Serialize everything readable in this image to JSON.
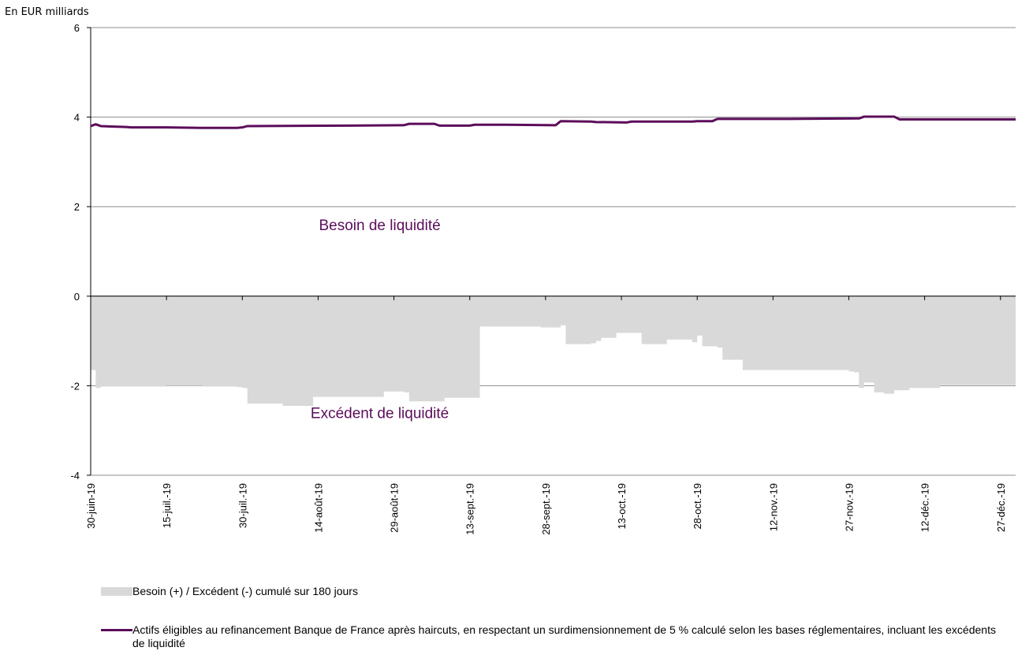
{
  "chart_data": {
    "type": "area",
    "unit_label": "En EUR milliards",
    "ylim": [
      -4,
      6
    ],
    "yticks": [
      -4,
      -2,
      0,
      2,
      4,
      6
    ],
    "x_ticks": [
      "30-juin-19",
      "15-juil.-19",
      "30-juil.-19",
      "14-août-19",
      "29-août-19",
      "13-sept.-19",
      "28-sept.-19",
      "13-oct.-19",
      "28-oct.-19",
      "12-nov.-19",
      "27-nov.-19",
      "12-déc.-19",
      "27-déc.-19"
    ],
    "x_range": [
      "2019-06-30",
      "2019-12-30"
    ],
    "grid": "horizontal",
    "annotations": [
      {
        "text": "Besoin de liquidité",
        "date": "2019-08-29",
        "value": 1.6
      },
      {
        "text": "Excédent de liquidité",
        "date": "2019-08-29",
        "value": -2.6
      }
    ],
    "series": [
      {
        "name": "Besoin (+)  / Excédent (-) cumulé sur 180 jours",
        "type": "area",
        "color": "#d9d9d9",
        "points": [
          [
            "2019-06-30",
            -1.65
          ],
          [
            "2019-07-01",
            -2.05
          ],
          [
            "2019-07-02",
            -2.02
          ],
          [
            "2019-07-08",
            -2.02
          ],
          [
            "2019-07-15",
            -2.0
          ],
          [
            "2019-07-22",
            -2.02
          ],
          [
            "2019-07-29",
            -2.03
          ],
          [
            "2019-07-30",
            -2.05
          ],
          [
            "2019-07-31",
            -2.4
          ],
          [
            "2019-08-05",
            -2.4
          ],
          [
            "2019-08-07",
            -2.45
          ],
          [
            "2019-08-12",
            -2.45
          ],
          [
            "2019-08-13",
            -2.25
          ],
          [
            "2019-08-26",
            -2.25
          ],
          [
            "2019-08-27",
            -2.13
          ],
          [
            "2019-08-31",
            -2.15
          ],
          [
            "2019-09-01",
            -2.35
          ],
          [
            "2019-09-07",
            -2.35
          ],
          [
            "2019-09-08",
            -2.27
          ],
          [
            "2019-09-14",
            -2.27
          ],
          [
            "2019-09-15",
            -0.68
          ],
          [
            "2019-09-26",
            -0.68
          ],
          [
            "2019-09-27",
            -0.7
          ],
          [
            "2019-09-30",
            -0.7
          ],
          [
            "2019-10-01",
            -0.65
          ],
          [
            "2019-10-02",
            -1.07
          ],
          [
            "2019-10-07",
            -1.05
          ],
          [
            "2019-10-08",
            -1.0
          ],
          [
            "2019-10-09",
            -0.93
          ],
          [
            "2019-10-11",
            -0.93
          ],
          [
            "2019-10-12",
            -0.82
          ],
          [
            "2019-10-16",
            -0.82
          ],
          [
            "2019-10-17",
            -1.07
          ],
          [
            "2019-10-21",
            -1.07
          ],
          [
            "2019-10-22",
            -0.97
          ],
          [
            "2019-10-26",
            -0.97
          ],
          [
            "2019-10-27",
            -1.03
          ],
          [
            "2019-10-28",
            -0.88
          ],
          [
            "2019-10-29",
            -1.12
          ],
          [
            "2019-10-31",
            -1.12
          ],
          [
            "2019-11-01",
            -1.15
          ],
          [
            "2019-11-02",
            -1.42
          ],
          [
            "2019-11-05",
            -1.42
          ],
          [
            "2019-11-06",
            -1.65
          ],
          [
            "2019-11-20",
            -1.65
          ],
          [
            "2019-11-27",
            -1.68
          ],
          [
            "2019-11-28",
            -1.7
          ],
          [
            "2019-11-29",
            -2.05
          ],
          [
            "2019-11-30",
            -1.93
          ],
          [
            "2019-12-02",
            -2.15
          ],
          [
            "2019-12-04",
            -2.18
          ],
          [
            "2019-12-06",
            -2.1
          ],
          [
            "2019-12-09",
            -2.05
          ],
          [
            "2019-12-14",
            -2.05
          ],
          [
            "2019-12-15",
            -1.98
          ],
          [
            "2019-12-30",
            -1.98
          ]
        ]
      },
      {
        "name": "Actifs éligibles au refinancement Banque de France après haircuts, en respectant un surdimensionnement de 5 % calculé selon les bases réglementaires, incluant les excédents de liquidité",
        "type": "line",
        "color": "#5c0c5a",
        "points": [
          [
            "2019-06-30",
            3.8
          ],
          [
            "2019-07-01",
            3.84
          ],
          [
            "2019-07-02",
            3.8
          ],
          [
            "2019-07-04",
            3.79
          ],
          [
            "2019-07-07",
            3.78
          ],
          [
            "2019-07-08",
            3.77
          ],
          [
            "2019-07-15",
            3.77
          ],
          [
            "2019-07-22",
            3.76
          ],
          [
            "2019-07-29",
            3.76
          ],
          [
            "2019-07-30",
            3.77
          ],
          [
            "2019-07-31",
            3.8
          ],
          [
            "2019-08-20",
            3.81
          ],
          [
            "2019-08-31",
            3.82
          ],
          [
            "2019-09-01",
            3.85
          ],
          [
            "2019-09-06",
            3.85
          ],
          [
            "2019-09-07",
            3.81
          ],
          [
            "2019-09-13",
            3.81
          ],
          [
            "2019-09-14",
            3.83
          ],
          [
            "2019-09-20",
            3.83
          ],
          [
            "2019-09-30",
            3.82
          ],
          [
            "2019-10-01",
            3.91
          ],
          [
            "2019-10-07",
            3.9
          ],
          [
            "2019-10-08",
            3.89
          ],
          [
            "2019-10-14",
            3.88
          ],
          [
            "2019-10-15",
            3.9
          ],
          [
            "2019-10-27",
            3.9
          ],
          [
            "2019-10-28",
            3.91
          ],
          [
            "2019-10-31",
            3.91
          ],
          [
            "2019-11-01",
            3.96
          ],
          [
            "2019-11-15",
            3.96
          ],
          [
            "2019-11-29",
            3.97
          ],
          [
            "2019-11-30",
            4.01
          ],
          [
            "2019-12-06",
            4.01
          ],
          [
            "2019-12-07",
            3.95
          ],
          [
            "2019-12-30",
            3.95
          ]
        ]
      }
    ]
  }
}
